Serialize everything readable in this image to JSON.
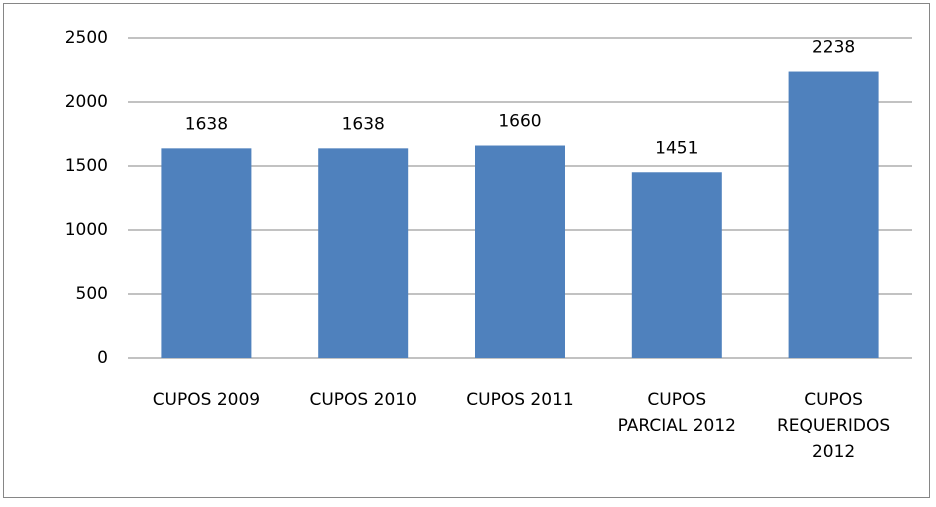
{
  "chart_data": {
    "type": "bar",
    "categories": [
      "CUPOS 2009",
      "CUPOS 2010",
      "CUPOS 2011",
      "CUPOS PARCIAL 2012",
      "CUPOS REQUERIDOS 2012"
    ],
    "values": [
      1638,
      1638,
      1660,
      1451,
      2238
    ],
    "color": "#4f81bd",
    "ylim": [
      0,
      2500
    ],
    "yticks": [
      0,
      500,
      1000,
      1500,
      2000,
      2500
    ],
    "grid": true
  }
}
